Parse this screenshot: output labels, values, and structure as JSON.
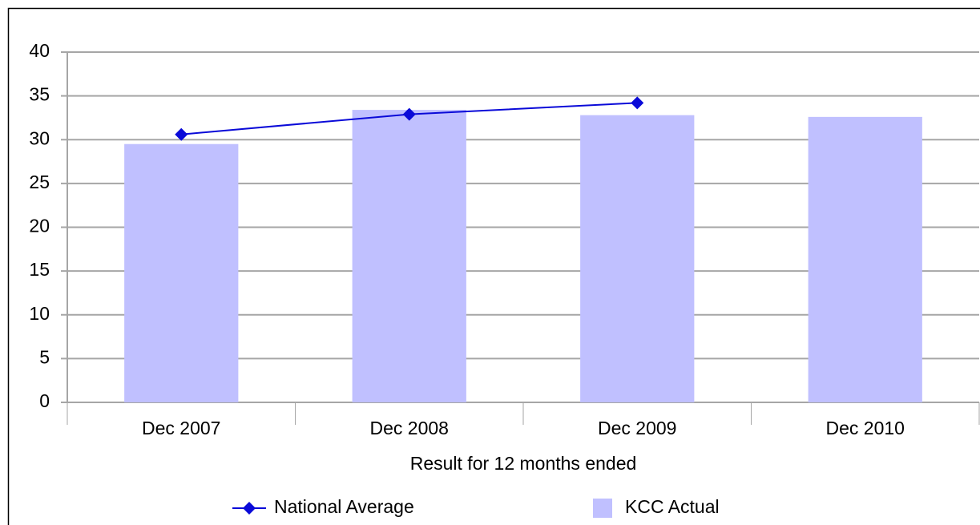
{
  "chart_data": {
    "type": "bar",
    "xlabel": "Result for 12 months ended",
    "categories": [
      "Dec 2007",
      "Dec 2008",
      "Dec 2009",
      "Dec 2010"
    ],
    "series": [
      {
        "name": "National Average",
        "type": "line",
        "color": "#0a0ad8",
        "values": [
          30.6,
          32.9,
          34.2,
          null
        ]
      },
      {
        "name": "KCC Actual",
        "type": "bar",
        "color": "#c0c0ff",
        "values": [
          29.5,
          33.4,
          32.8,
          32.6
        ]
      }
    ],
    "ylim": [
      0,
      40
    ],
    "yticks": [
      0,
      5,
      10,
      15,
      20,
      25,
      30,
      35,
      40
    ],
    "grid": true,
    "legend": "bottom"
  }
}
